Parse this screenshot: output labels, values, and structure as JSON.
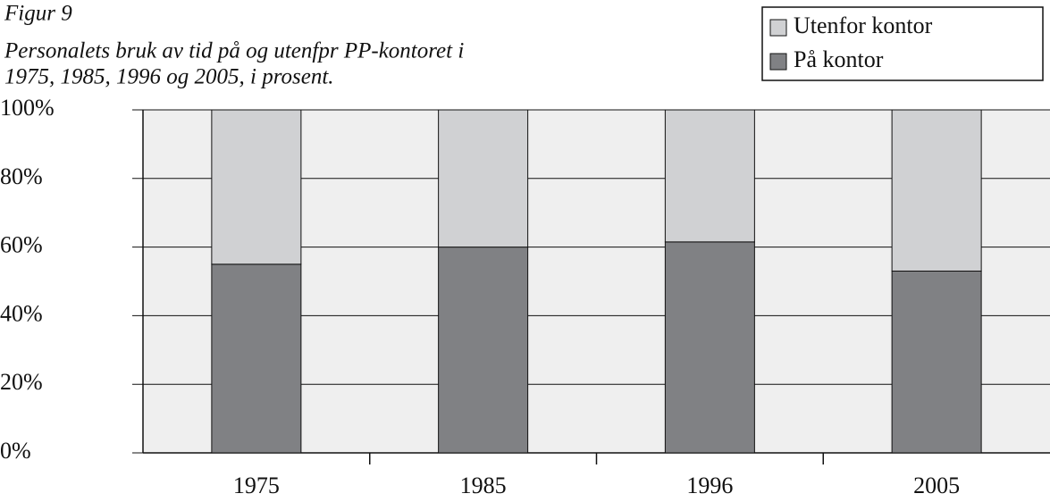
{
  "chart_data": {
    "type": "stacked_bar",
    "figure_label": "Figur 9",
    "title_lines": [
      "Personalets bruk av tid på og utenfpr PP-kontoret i",
      "1975, 1985, 1996 og 2005, i prosent."
    ],
    "categories": [
      "1975",
      "1985",
      "1996",
      "2005"
    ],
    "series": [
      {
        "name": "På kontor",
        "color": "#808184",
        "values": [
          55,
          60,
          61.5,
          53
        ]
      },
      {
        "name": "Utenfor kontor",
        "color": "#d0d1d3",
        "values": [
          45,
          40,
          38.5,
          47
        ]
      }
    ],
    "ylim": [
      0,
      100
    ],
    "yticks": [
      {
        "value": 0,
        "label": "0%"
      },
      {
        "value": 20,
        "label": "20%"
      },
      {
        "value": 40,
        "label": "40%"
      },
      {
        "value": 60,
        "label": "60%"
      },
      {
        "value": 80,
        "label": "80%"
      },
      {
        "value": 100,
        "label": "100%"
      }
    ],
    "grid": true,
    "legend": "top-right"
  }
}
